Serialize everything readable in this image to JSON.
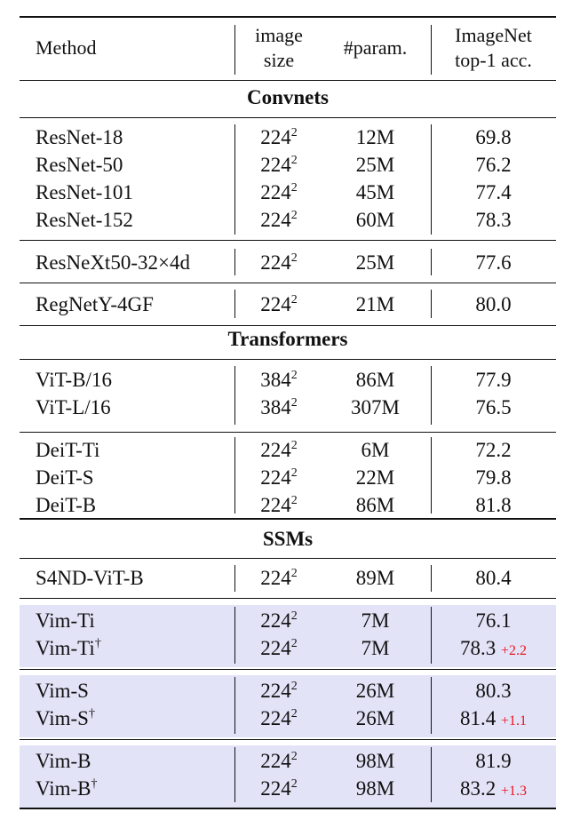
{
  "header": {
    "method": "Method",
    "image_size": [
      "image",
      "size"
    ],
    "params": "#param.",
    "acc": [
      "ImageNet",
      "top-1 acc."
    ]
  },
  "sections": {
    "convnets": "Convnets",
    "transformers": "Transformers",
    "ssms": "SSMs"
  },
  "size_exp": "2",
  "dagger": "†",
  "rows": [
    {
      "method": "ResNet-18",
      "size": "224",
      "params": "12M",
      "acc": "69.8"
    },
    {
      "method": "ResNet-50",
      "size": "224",
      "params": "25M",
      "acc": "76.2"
    },
    {
      "method": "ResNet-101",
      "size": "224",
      "params": "45M",
      "acc": "77.4"
    },
    {
      "method": "ResNet-152",
      "size": "224",
      "params": "60M",
      "acc": "78.3"
    },
    {
      "method": "ResNeXt50-32×4d",
      "size": "224",
      "params": "25M",
      "acc": "77.6"
    },
    {
      "method": "RegNetY-4GF",
      "size": "224",
      "params": "21M",
      "acc": "80.0"
    },
    {
      "method": "ViT-B/16",
      "size": "384",
      "params": "86M",
      "acc": "77.9"
    },
    {
      "method": "ViT-L/16",
      "size": "384",
      "params": "307M",
      "acc": "76.5"
    },
    {
      "method": "DeiT-Ti",
      "size": "224",
      "params": "6M",
      "acc": "72.2"
    },
    {
      "method": "DeiT-S",
      "size": "224",
      "params": "22M",
      "acc": "79.8"
    },
    {
      "method": "DeiT-B",
      "size": "224",
      "params": "86M",
      "acc": "81.8"
    },
    {
      "method": "S4ND-ViT-B",
      "size": "224",
      "params": "89M",
      "acc": "80.4"
    },
    {
      "method": "Vim-Ti",
      "size": "224",
      "params": "7M",
      "acc": "76.1"
    },
    {
      "method": "Vim-Ti",
      "size": "224",
      "params": "7M",
      "acc": "78.3",
      "gain": "+2.2"
    },
    {
      "method": "Vim-S",
      "size": "224",
      "params": "26M",
      "acc": "80.3"
    },
    {
      "method": "Vim-S",
      "size": "224",
      "params": "26M",
      "acc": "81.4",
      "gain": "+1.1"
    },
    {
      "method": "Vim-B",
      "size": "224",
      "params": "98M",
      "acc": "81.9"
    },
    {
      "method": "Vim-B",
      "size": "224",
      "params": "98M",
      "acc": "83.2",
      "gain": "+1.3"
    }
  ]
}
